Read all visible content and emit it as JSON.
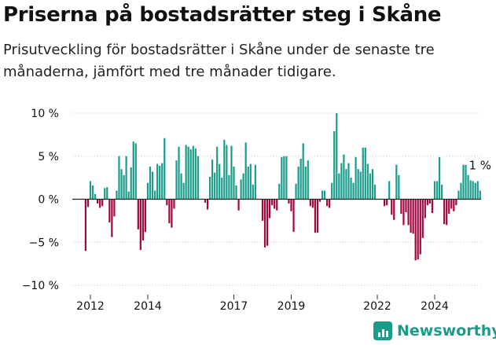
{
  "title": "Priserna på bostadsrätter steg i Skåne",
  "subtitle": "Prisutveckling för bostadsrätter i Skåne under de senaste tre månaderna, jämfört med tre månader tidigare.",
  "brand": "Newsworthy",
  "colors": {
    "positive": "#1a9c8b",
    "negative": "#a0073f",
    "zero_line": "#222222",
    "text": "#111111"
  },
  "chart_data": {
    "type": "bar",
    "title": "Priserna på bostadsrätter steg i Skåne",
    "xlabel": "",
    "ylabel": "",
    "ylim": [
      -10,
      10
    ],
    "y_ticks": [
      10,
      5,
      0,
      -5,
      -10
    ],
    "y_tick_labels": [
      "10 %",
      "5 %",
      "0 %",
      "−5 %",
      "−10 %"
    ],
    "x_ticks": [
      2012,
      2014,
      2017,
      2019,
      2022,
      2024
    ],
    "x_tick_labels": [
      "2012",
      "2014",
      "2017",
      "2019",
      "2022",
      "2024"
    ],
    "x_start": 2011.833,
    "period": "month",
    "last_value_label": "1 %",
    "values": [
      -6.0,
      -0.9,
      2.1,
      1.6,
      0.6,
      -0.5,
      -1.0,
      -0.8,
      1.3,
      1.4,
      -2.7,
      -4.4,
      -2.0,
      1.0,
      5.0,
      3.5,
      2.8,
      5.0,
      0.9,
      3.7,
      6.7,
      6.5,
      -3.5,
      -5.9,
      -4.8,
      -3.8,
      1.9,
      3.8,
      3.2,
      1.0,
      4.1,
      3.9,
      4.2,
      7.1,
      -0.7,
      -2.8,
      -3.3,
      -1.1,
      4.5,
      6.1,
      3.0,
      1.9,
      6.3,
      6.1,
      5.8,
      6.2,
      5.9,
      5.0,
      0.0,
      0.0,
      -0.4,
      -1.2,
      2.6,
      4.6,
      3.1,
      6.1,
      4.1,
      2.5,
      6.9,
      6.3,
      2.8,
      6.2,
      3.8,
      1.6,
      -1.3,
      2.3,
      3.0,
      6.6,
      3.8,
      4.1,
      1.7,
      4.0,
      0.0,
      0.0,
      -2.5,
      -5.6,
      -5.4,
      -2.2,
      -0.7,
      -1.1,
      -1.3,
      1.8,
      4.9,
      5.0,
      5.0,
      -0.5,
      -1.4,
      -3.8,
      1.8,
      3.8,
      4.7,
      6.5,
      3.8,
      4.5,
      -0.8,
      -1.0,
      -3.9,
      -3.9,
      -0.3,
      1.0,
      1.0,
      -0.8,
      -1.0,
      1.9,
      7.9,
      10.0,
      3.0,
      4.2,
      5.2,
      3.5,
      4.2,
      2.5,
      1.9,
      4.9,
      3.5,
      3.2,
      6.0,
      6.0,
      4.1,
      3.0,
      3.5,
      1.7,
      0.0,
      0.0,
      0.0,
      -0.8,
      -0.7,
      2.1,
      -1.8,
      -2.4,
      4.0,
      2.8,
      -1.7,
      -3.0,
      -1.5,
      -3.0,
      -3.9,
      -4.0,
      -7.1,
      -7.0,
      -6.4,
      -4.5,
      -2.2,
      -0.7,
      -0.5,
      -1.6,
      2.1,
      2.1,
      4.9,
      1.7,
      -2.9,
      -3.0,
      -1.7,
      -1.1,
      -1.4,
      -0.7,
      1.0,
      1.9,
      4.0,
      4.0,
      2.8,
      2.2,
      2.1,
      1.9,
      2.1,
      1.0
    ]
  }
}
